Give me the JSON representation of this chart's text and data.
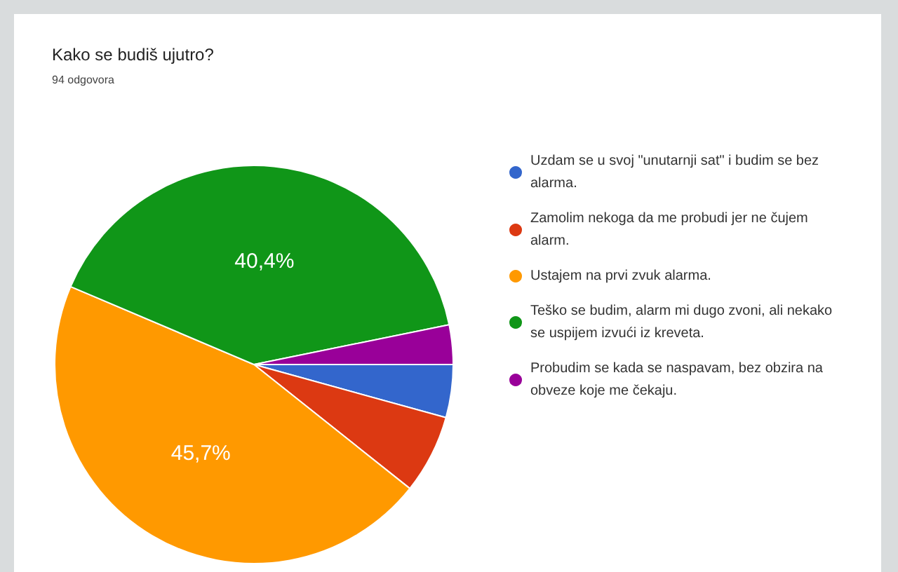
{
  "chart_data": {
    "type": "pie",
    "title": "Kako se budiš ujutro?",
    "subtitle": "94 odgovora",
    "categories": [
      "Uzdam se u svoj \"unutarnji sat\" i budim se bez alarma.",
      "Zamolim nekoga da me probudi jer ne čujem alarm.",
      "Ustajem na prvi zvuk alarma.",
      "Teško se budim, alarm mi dugo zvoni, ali nekako se uspijem izvući iz kreveta.",
      "Probudim se kada se naspavam, bez obzira na obveze koje me čekaju."
    ],
    "values": [
      4.3,
      6.4,
      45.7,
      40.4,
      3.2
    ],
    "colors": [
      "#3366cc",
      "#dc3912",
      "#ff9900",
      "#109618",
      "#990099"
    ],
    "value_labels": [
      null,
      null,
      "45,7%",
      "40,4%",
      null
    ],
    "legend": "right"
  }
}
